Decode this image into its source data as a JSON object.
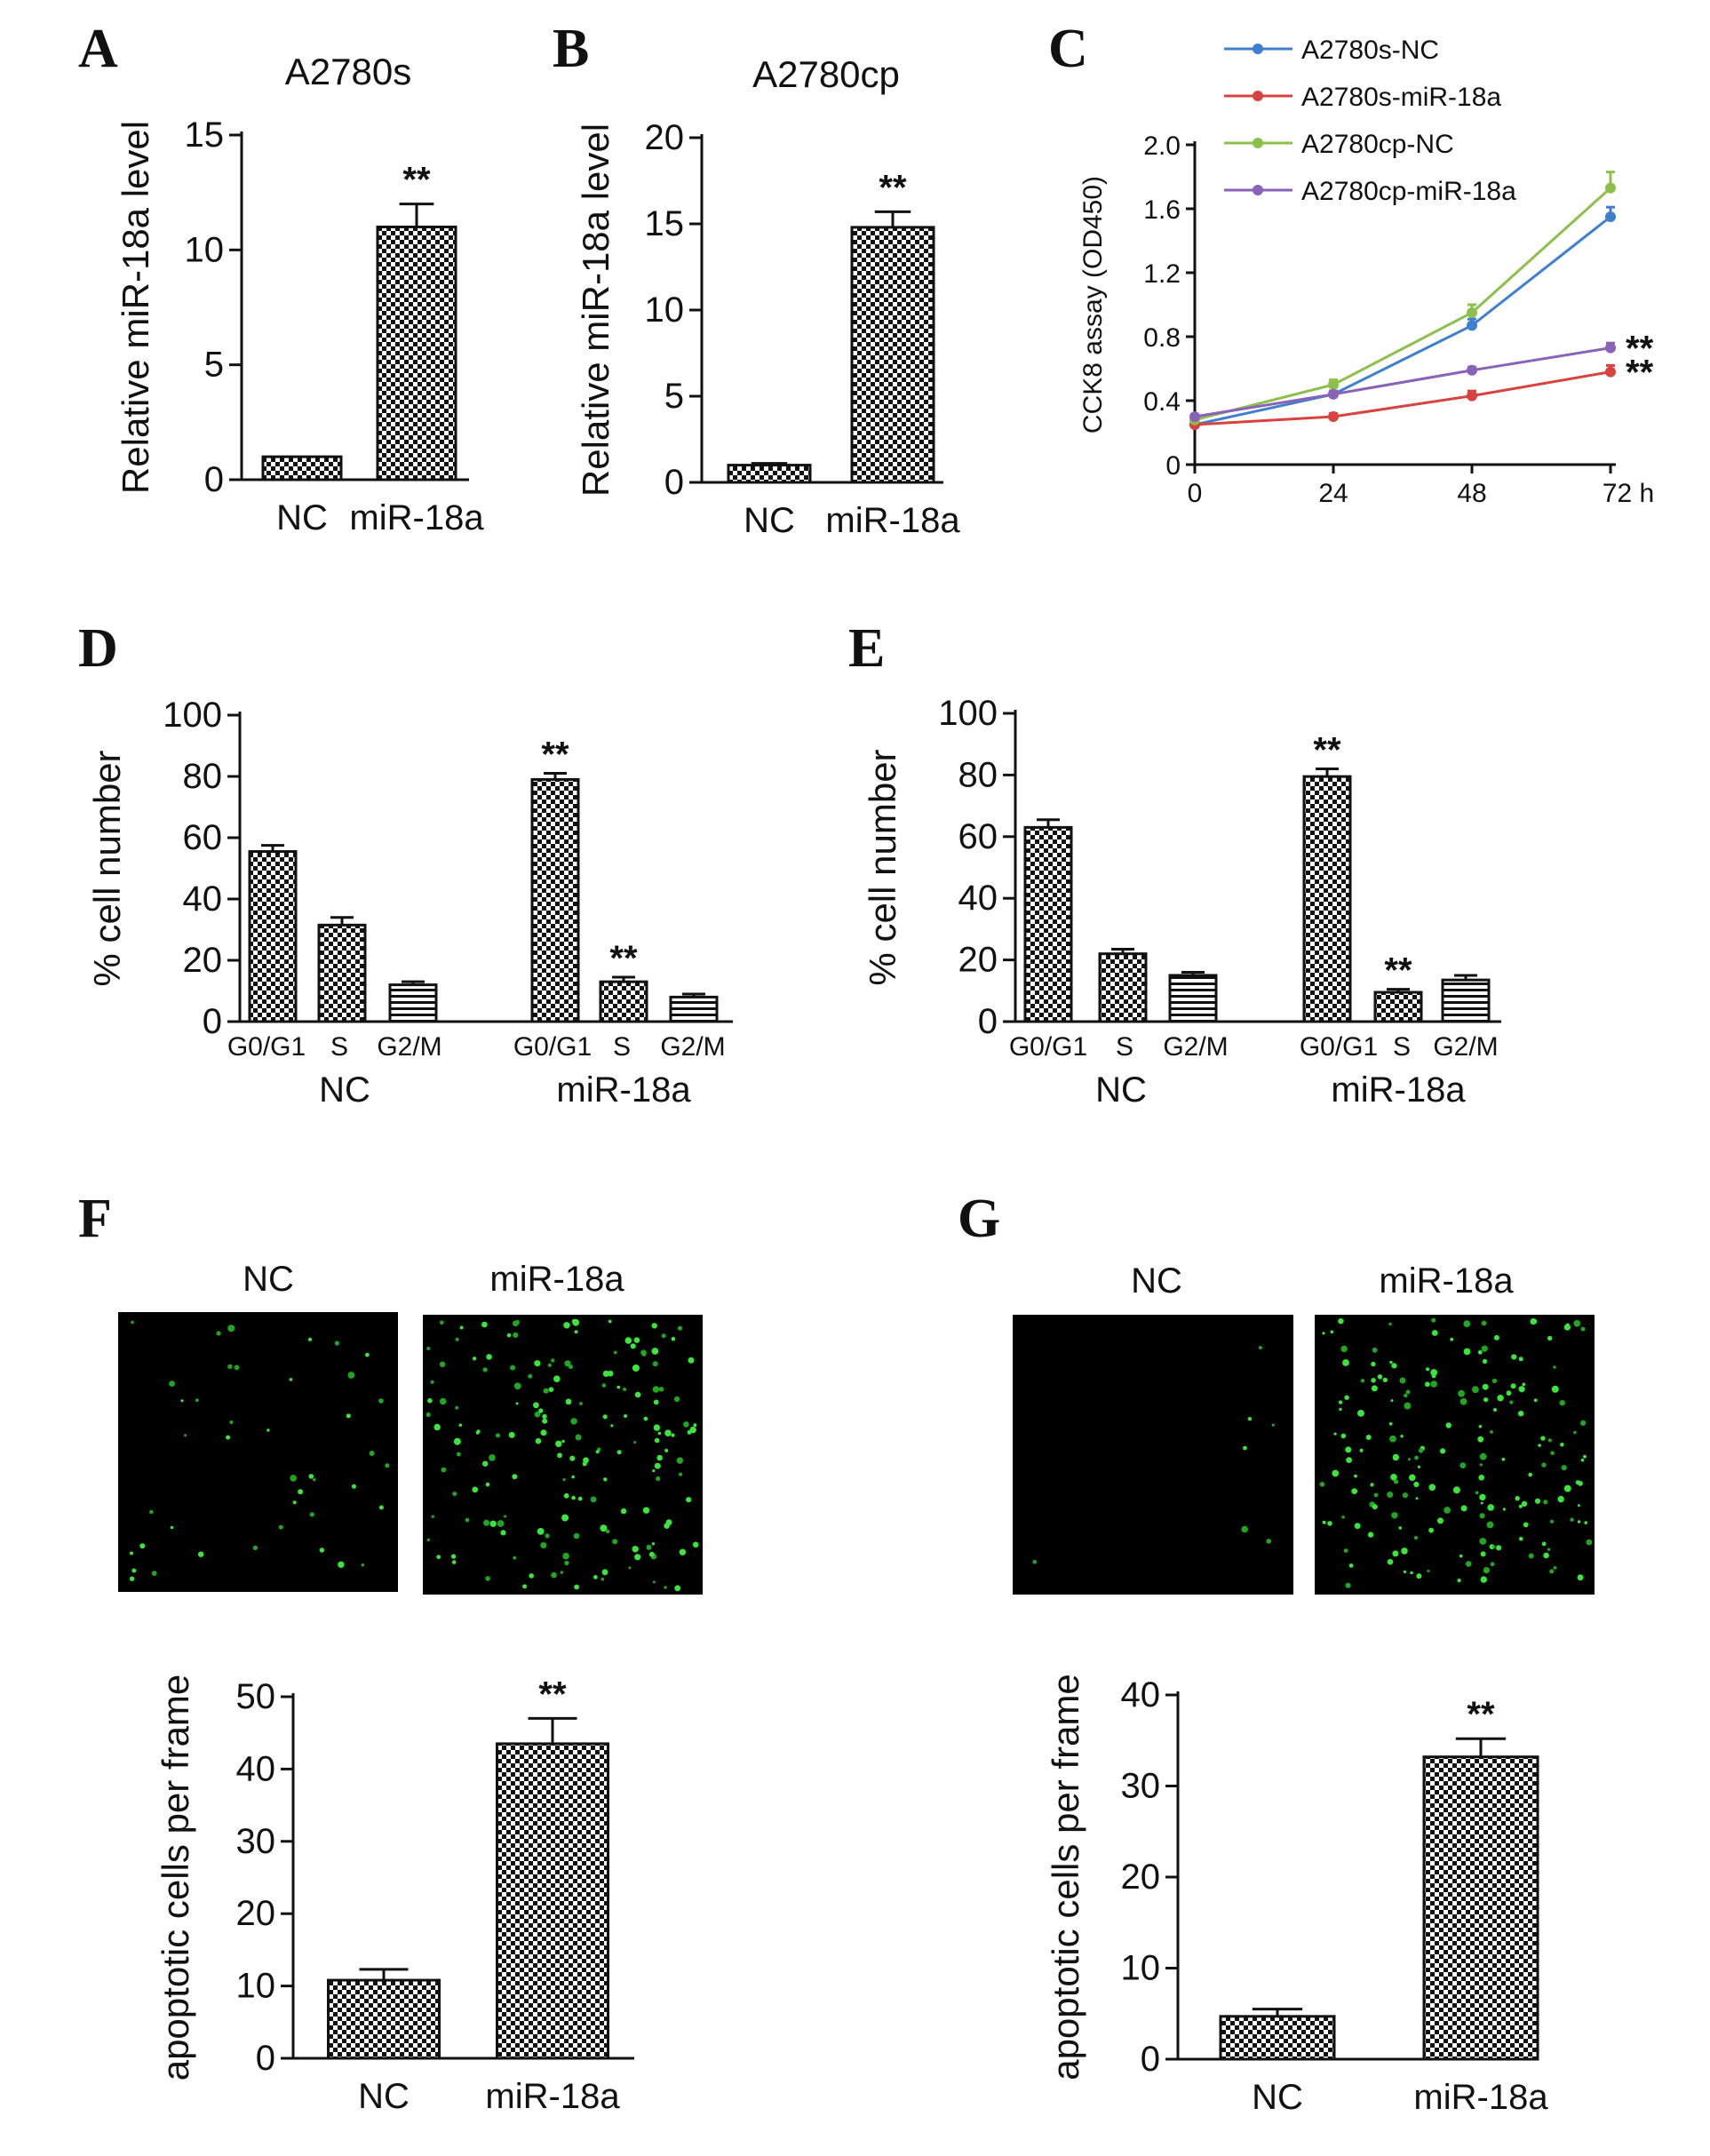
{
  "panels": {
    "A": {
      "letter": "A",
      "title": "A2780s"
    },
    "B": {
      "letter": "B",
      "title": "A2780cp"
    },
    "C": {
      "letter": "C"
    },
    "D": {
      "letter": "D"
    },
    "E": {
      "letter": "E"
    },
    "F": {
      "letter": "F",
      "micro_labels": [
        "NC",
        "miR-18a"
      ]
    },
    "G": {
      "letter": "G",
      "micro_labels": [
        "NC",
        "miR-18a"
      ]
    }
  },
  "chart_data": [
    {
      "id": "A",
      "type": "bar",
      "title": "A2780s",
      "ylabel": "Relative miR-18a level",
      "xlabel": "",
      "categories": [
        "NC",
        "miR-18a"
      ],
      "values": [
        1.0,
        11.0
      ],
      "errors": [
        0,
        1.0
      ],
      "significance": [
        "",
        "**"
      ],
      "ylim": [
        0,
        15
      ],
      "yticks": [
        0,
        5,
        10,
        15
      ],
      "legend": "none",
      "grid": false
    },
    {
      "id": "B",
      "type": "bar",
      "title": "A2780cp",
      "ylabel": "Relative miR-18a level",
      "xlabel": "",
      "categories": [
        "NC",
        "miR-18a"
      ],
      "values": [
        1.0,
        14.8
      ],
      "errors": [
        0.1,
        0.9
      ],
      "significance": [
        "",
        "**"
      ],
      "ylim": [
        0,
        20
      ],
      "yticks": [
        0,
        5,
        10,
        15,
        20
      ],
      "legend": "none",
      "grid": false
    },
    {
      "id": "C",
      "type": "line",
      "ylabel": "CCK8 assay (OD450)",
      "xlabel": "",
      "x": [
        0,
        24,
        48,
        72
      ],
      "xtick_labels": [
        "0",
        "24",
        "48",
        "72 h"
      ],
      "ylim": [
        0,
        2.0
      ],
      "yticks": [
        "0",
        "0.4",
        "0.8",
        "1.2",
        "1.6",
        "2.0"
      ],
      "series": [
        {
          "name": "A2780s-NC",
          "color": "#3f7fcf",
          "values": [
            0.25,
            0.44,
            0.87,
            1.55
          ],
          "errors": [
            0.01,
            0.02,
            0.04,
            0.06
          ],
          "significance": ""
        },
        {
          "name": "A2780s-miR-18a",
          "color": "#d9433f",
          "values": [
            0.25,
            0.3,
            0.43,
            0.58
          ],
          "errors": [
            0.01,
            0.02,
            0.03,
            0.04
          ],
          "significance": "**"
        },
        {
          "name": "A2780cp-NC",
          "color": "#8cc04b",
          "values": [
            0.28,
            0.5,
            0.95,
            1.73
          ],
          "errors": [
            0.01,
            0.03,
            0.05,
            0.1
          ],
          "significance": ""
        },
        {
          "name": "A2780cp-miR-18a",
          "color": "#8a62b7",
          "values": [
            0.3,
            0.44,
            0.59,
            0.73
          ],
          "errors": [
            0.01,
            0.02,
            0.02,
            0.03
          ],
          "significance": "**"
        }
      ],
      "legend": "top-left",
      "grid": false
    },
    {
      "id": "D",
      "type": "bar",
      "ylabel": "% cell number",
      "xlabel": "",
      "groups": [
        "NC",
        "miR-18a"
      ],
      "categories": [
        "G0/G1",
        "S",
        "G2/M"
      ],
      "series": [
        {
          "name": "NC",
          "values": [
            55.5,
            31.5,
            12.0
          ],
          "errors": [
            2.0,
            2.5,
            1.0
          ],
          "significance": [
            "",
            "",
            ""
          ]
        },
        {
          "name": "miR-18a",
          "values": [
            79.0,
            13.0,
            8.0
          ],
          "errors": [
            2.0,
            1.5,
            1.0
          ],
          "significance": [
            "**",
            "**",
            ""
          ]
        }
      ],
      "ylim": [
        0,
        100
      ],
      "yticks": [
        0,
        20,
        40,
        60,
        80,
        100
      ],
      "legend": "none",
      "grid": false
    },
    {
      "id": "E",
      "type": "bar",
      "ylabel": "% cell number",
      "xlabel": "",
      "groups": [
        "NC",
        "miR-18a"
      ],
      "categories": [
        "G0/G1",
        "S",
        "G2/M"
      ],
      "series": [
        {
          "name": "NC",
          "values": [
            63.0,
            22.0,
            15.0
          ],
          "errors": [
            2.5,
            1.5,
            1.0
          ],
          "significance": [
            "",
            "",
            ""
          ]
        },
        {
          "name": "miR-18a",
          "values": [
            79.5,
            9.5,
            13.5
          ],
          "errors": [
            2.5,
            1.0,
            1.5
          ],
          "significance": [
            "**",
            "**",
            ""
          ]
        }
      ],
      "ylim": [
        0,
        100
      ],
      "yticks": [
        0,
        20,
        40,
        60,
        80,
        100
      ],
      "legend": "none",
      "grid": false
    },
    {
      "id": "F",
      "type": "bar",
      "ylabel": "apoptotic cells per frame",
      "xlabel": "",
      "categories": [
        "NC",
        "miR-18a"
      ],
      "values": [
        10.8,
        43.5
      ],
      "errors": [
        1.5,
        3.5
      ],
      "significance": [
        "",
        "**"
      ],
      "ylim": [
        0,
        50
      ],
      "yticks": [
        0,
        10,
        20,
        30,
        40,
        50
      ],
      "legend": "none",
      "grid": false
    },
    {
      "id": "G",
      "type": "bar",
      "ylabel": "apoptotic cells per frame",
      "xlabel": "",
      "categories": [
        "NC",
        "miR-18a"
      ],
      "values": [
        4.7,
        33.2
      ],
      "errors": [
        0.8,
        2.0
      ],
      "significance": [
        "",
        "**"
      ],
      "ylim": [
        0,
        40
      ],
      "yticks": [
        0,
        10,
        20,
        30,
        40
      ],
      "legend": "none",
      "grid": false
    }
  ]
}
